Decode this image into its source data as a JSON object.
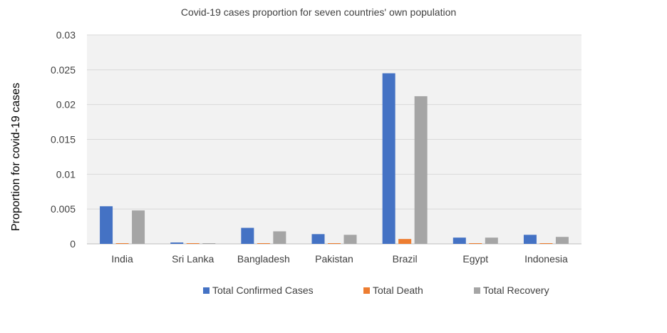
{
  "chart_data": {
    "type": "bar",
    "title": "Covid-19 cases proportion for seven countries' own population",
    "xlabel": "",
    "ylabel": "Proportion for covid-19 cases",
    "categories": [
      "India",
      "Sri Lanka",
      "Bangladesh",
      "Pakistan",
      "Brazil",
      "Egypt",
      "Indonesia"
    ],
    "series": [
      {
        "name": "Total Confirmed Cases",
        "color": "#4472C4",
        "values": [
          0.0054,
          0.0002,
          0.0023,
          0.0014,
          0.0245,
          0.0009,
          0.0013
        ]
      },
      {
        "name": "Total Death",
        "color": "#ED7D31",
        "values": [
          0.0001,
          1e-05,
          3e-05,
          3e-05,
          0.0007,
          5e-05,
          4e-05
        ]
      },
      {
        "name": "Total Recovery",
        "color": "#A5A5A5",
        "values": [
          0.0048,
          0.0001,
          0.0018,
          0.0013,
          0.0212,
          0.0009,
          0.001
        ]
      }
    ],
    "ylim": [
      0,
      0.03
    ],
    "yticks": [
      "0",
      "0.005",
      "0.01",
      "0.015",
      "0.02",
      "0.025",
      "0.03"
    ],
    "grid": true,
    "legend_position": "bottom",
    "plot_background": "#F2F2F2",
    "gridline_color": "#D9D9D9"
  }
}
